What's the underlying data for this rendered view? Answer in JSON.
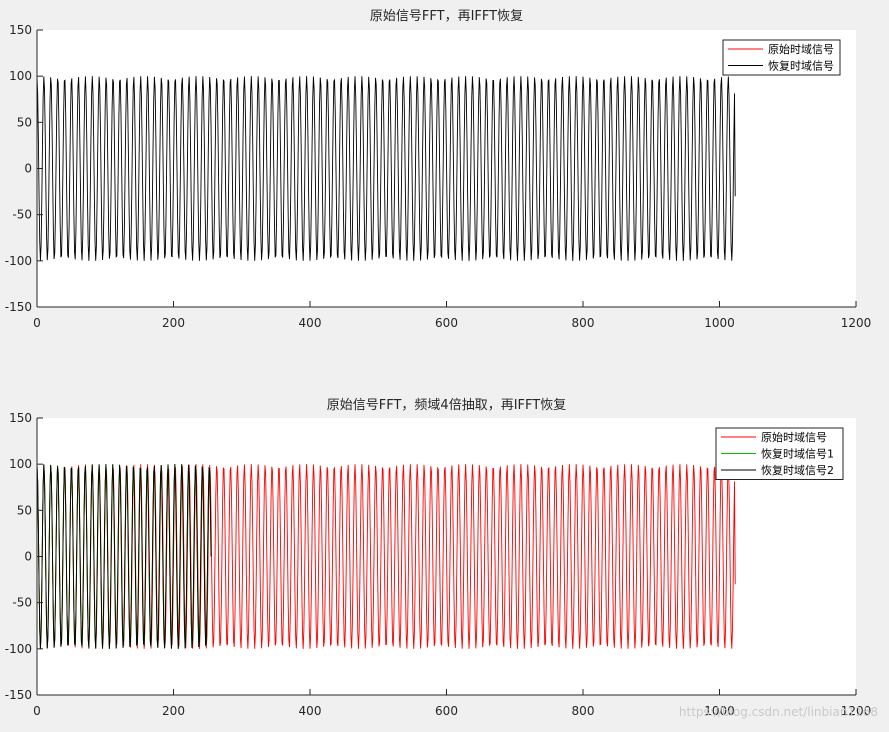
{
  "chart_data": [
    {
      "type": "line",
      "title": "原始信号FFT，再IFFT恢复",
      "xlim": [
        0,
        1200
      ],
      "ylim": [
        -150,
        150
      ],
      "xticks": [
        0,
        200,
        400,
        600,
        800,
        1000,
        1200
      ],
      "yticks": [
        150,
        100,
        50,
        0,
        -50,
        -100,
        -150
      ],
      "xtick_labels": [
        "0",
        "200",
        "400",
        "600",
        "800",
        "1000",
        "1200"
      ],
      "ytick_labels": [
        "150",
        "100",
        "50",
        "0",
        "-50",
        "-100",
        "-150"
      ],
      "grid": false,
      "legend_position": "top-right",
      "series": [
        {
          "name": "原始时域信号",
          "color": "#ff0000",
          "amplitude": 100,
          "samples": 1024,
          "cycles": 101,
          "end_value": -30,
          "visible": "hidden beneath overlapping black trace"
        },
        {
          "name": "恢复时域信号",
          "color": "#000000",
          "amplitude": 100,
          "samples": 1024,
          "cycles": 101,
          "end_value": -30
        }
      ]
    },
    {
      "type": "line",
      "title": "原始信号FFT，频域4倍抽取，再IFFT恢复",
      "xlim": [
        0,
        1200
      ],
      "ylim": [
        -150,
        150
      ],
      "xticks": [
        0,
        200,
        400,
        600,
        800,
        1000,
        1200
      ],
      "yticks": [
        150,
        100,
        50,
        0,
        -50,
        -100,
        -150
      ],
      "xtick_labels": [
        "0",
        "200",
        "400",
        "600",
        "800",
        "1000",
        "1200"
      ],
      "ytick_labels": [
        "150",
        "100",
        "50",
        "0",
        "-50",
        "-100",
        "-150"
      ],
      "grid": false,
      "legend_position": "top-right",
      "series": [
        {
          "name": "原始时域信号",
          "color": "#ff0000",
          "amplitude": 100,
          "samples": 1024,
          "cycles": 101,
          "end_value": -30
        },
        {
          "name": "恢复时域信号1",
          "color": "#00c000",
          "amplitude": 100,
          "samples": 256,
          "cycles": 25.25,
          "end_value": 0
        },
        {
          "name": "恢复时域信号2",
          "color": "#000000",
          "amplitude": 100,
          "samples": 256,
          "cycles": 25.25,
          "end_value": 0
        }
      ]
    }
  ],
  "watermark": "https://blog.csdn.net/linbian1168"
}
